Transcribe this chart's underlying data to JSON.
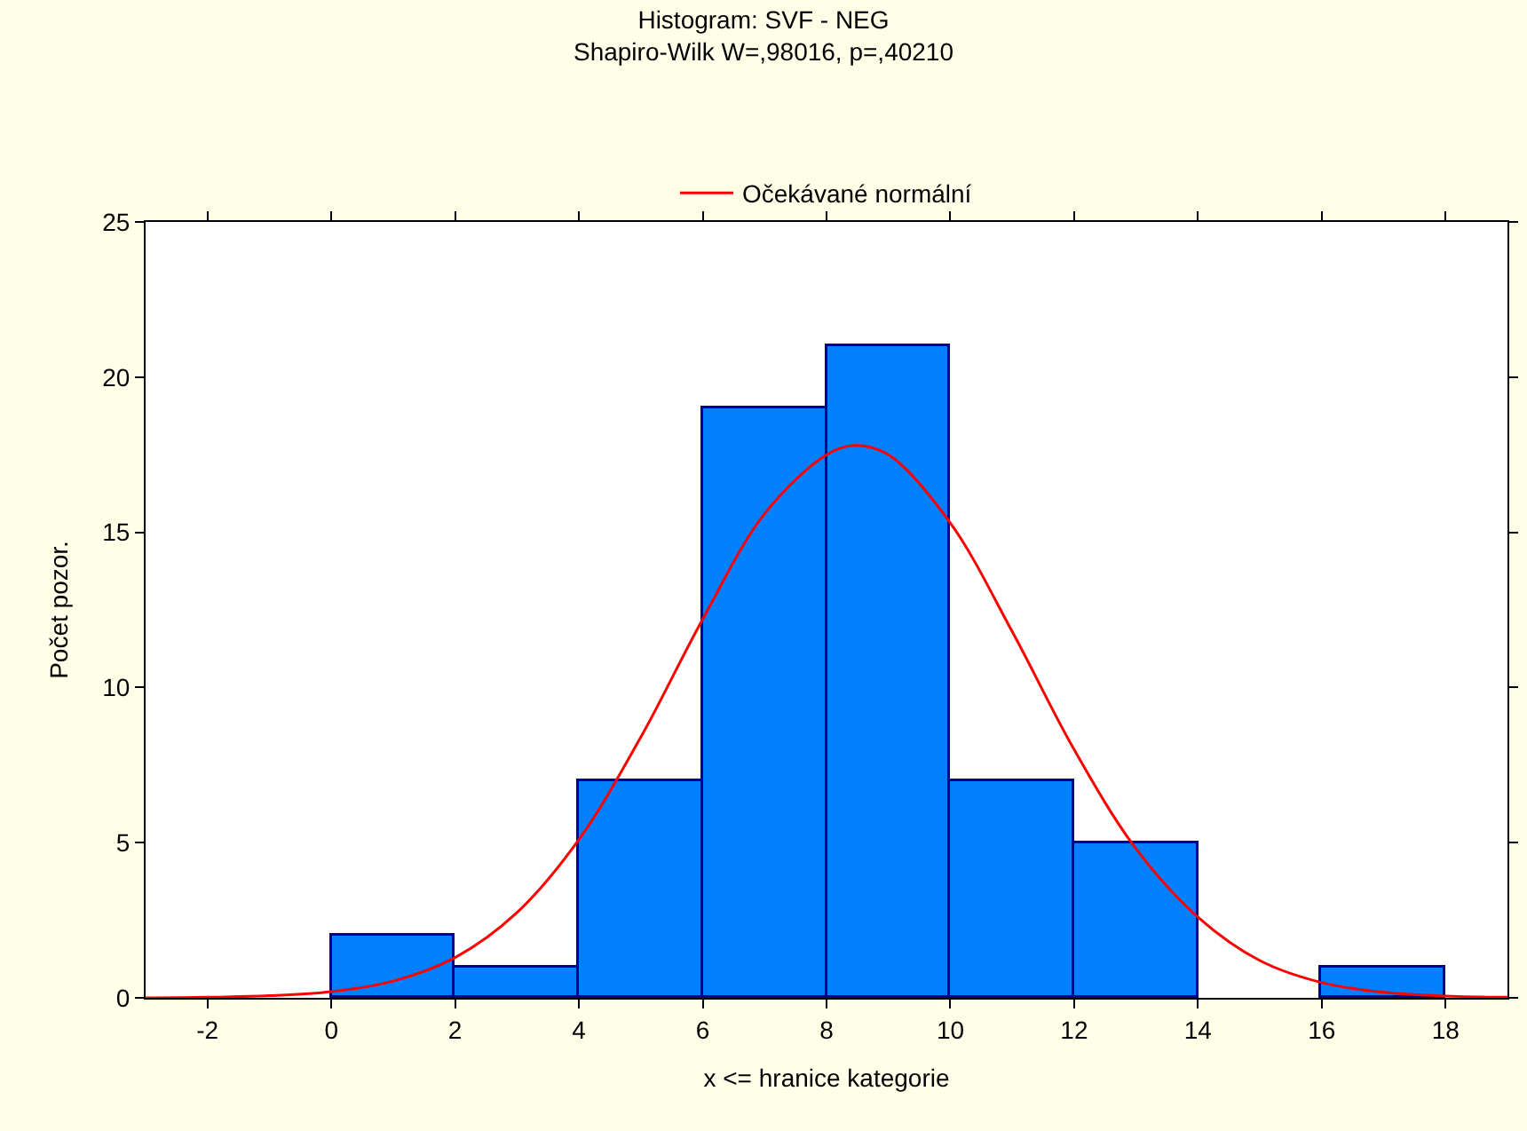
{
  "chart_data": {
    "type": "histogram",
    "title": "Histogram: SVF - NEG",
    "subtitle": "Shapiro-Wilk W=,98016, p=,40210",
    "xlabel": "x <= hranice kategorie",
    "ylabel": "Počet pozor.",
    "bins": [
      0,
      2,
      4,
      6,
      8,
      10,
      12,
      14,
      16,
      18
    ],
    "values": [
      2,
      1,
      7,
      19,
      21,
      7,
      5,
      0,
      1
    ],
    "color": "#0080ff",
    "series": [
      {
        "type": "line",
        "name": "Očekávané normální",
        "color": "#ff0000",
        "x": [
          -3,
          -2,
          -1,
          0,
          1,
          2,
          3,
          4,
          5,
          6,
          7,
          8,
          8.45,
          9,
          10,
          11,
          12,
          13,
          14,
          15,
          16,
          17,
          18,
          19
        ],
        "values": [
          0,
          0.02,
          0.07,
          0.2,
          0.54,
          1.3,
          2.75,
          5.1,
          8.4,
          12.2,
          15.6,
          17.5,
          17.8,
          17.5,
          15.3,
          11.8,
          8.0,
          4.8,
          2.6,
          1.2,
          0.49,
          0.18,
          0.06,
          0.02
        ]
      }
    ],
    "xlim": [
      -3,
      19
    ],
    "xticks": [
      -2,
      0,
      2,
      4,
      6,
      8,
      10,
      12,
      14,
      16,
      18
    ],
    "ylim": [
      0,
      25
    ],
    "yticks": [
      0,
      5,
      10,
      15,
      20,
      25
    ],
    "legend": "top"
  }
}
